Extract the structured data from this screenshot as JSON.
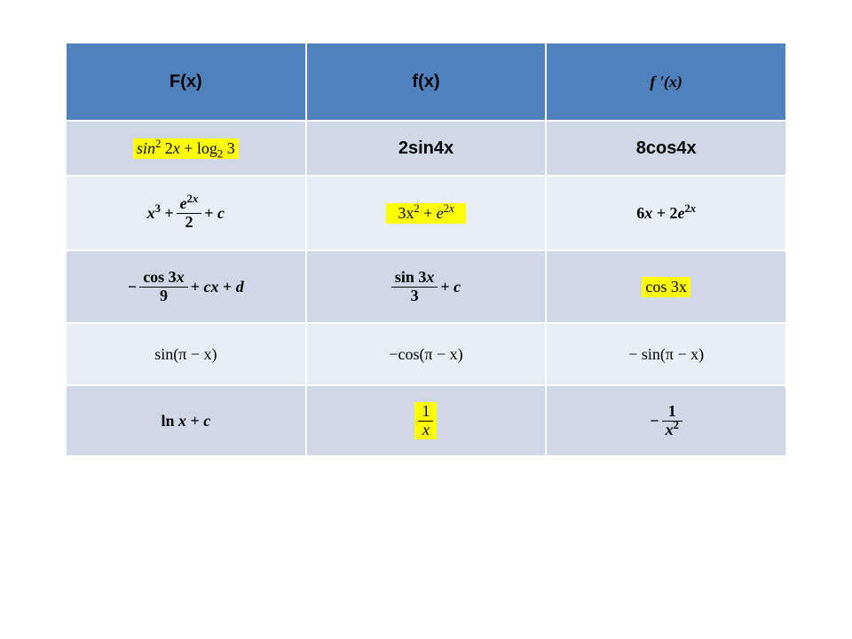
{
  "table": {
    "header_bg": "#4f81bd",
    "row_alt_a": "#d0d8e8",
    "row_alt_b": "#e9edf4",
    "highlight": "#ffff00",
    "columns": [
      "F(x)",
      "f(x)",
      "f'(x)"
    ],
    "rows": [
      {
        "c1": {
          "text": "sin² 2x + log₂ 3",
          "hl": true,
          "bold": false
        },
        "c2": {
          "text": "2sin4x",
          "hl": false,
          "bold": true,
          "arial": true
        },
        "c3": {
          "text": "8cos4x",
          "hl": false,
          "bold": true,
          "arial": true
        }
      },
      {
        "c1": {
          "text": "x³ + e²ˣ/2 + c",
          "hl": false,
          "bold": true
        },
        "c2": {
          "text": "3x² + e²ˣ",
          "hl": true,
          "bold": false
        },
        "c3": {
          "text": "6x + 2e²ˣ",
          "hl": false,
          "bold": true
        }
      },
      {
        "c1": {
          "text": "− cos3x/9 + cx + d",
          "hl": false,
          "bold": true
        },
        "c2": {
          "text": "sin3x/3 + c",
          "hl": false,
          "bold": true
        },
        "c3": {
          "text": "cos 3x",
          "hl": true,
          "bold": false
        }
      },
      {
        "c1": {
          "text": "sin(π − x)",
          "hl": false,
          "bold": false
        },
        "c2": {
          "text": "−cos(π − x)",
          "hl": false,
          "bold": false
        },
        "c3": {
          "text": "− sin(π − x)",
          "hl": false,
          "bold": false
        }
      },
      {
        "c1": {
          "text": "ln x + c",
          "hl": false,
          "bold": true
        },
        "c2": {
          "text": "1/x",
          "hl": true,
          "bold": false
        },
        "c3": {
          "text": "− 1/x²",
          "hl": false,
          "bold": true
        }
      }
    ]
  },
  "hdr": {
    "h1": "F(x)",
    "h2": "f(x)",
    "h3": "f'(x)"
  },
  "r1c2": "2sin4x",
  "r1c3": "8cos4x",
  "r3c3": "cos 3x",
  "r4c1": "sin(π − x)",
  "r4c2": "−cos(π − x)",
  "r4c3": "− sin(π − x)"
}
